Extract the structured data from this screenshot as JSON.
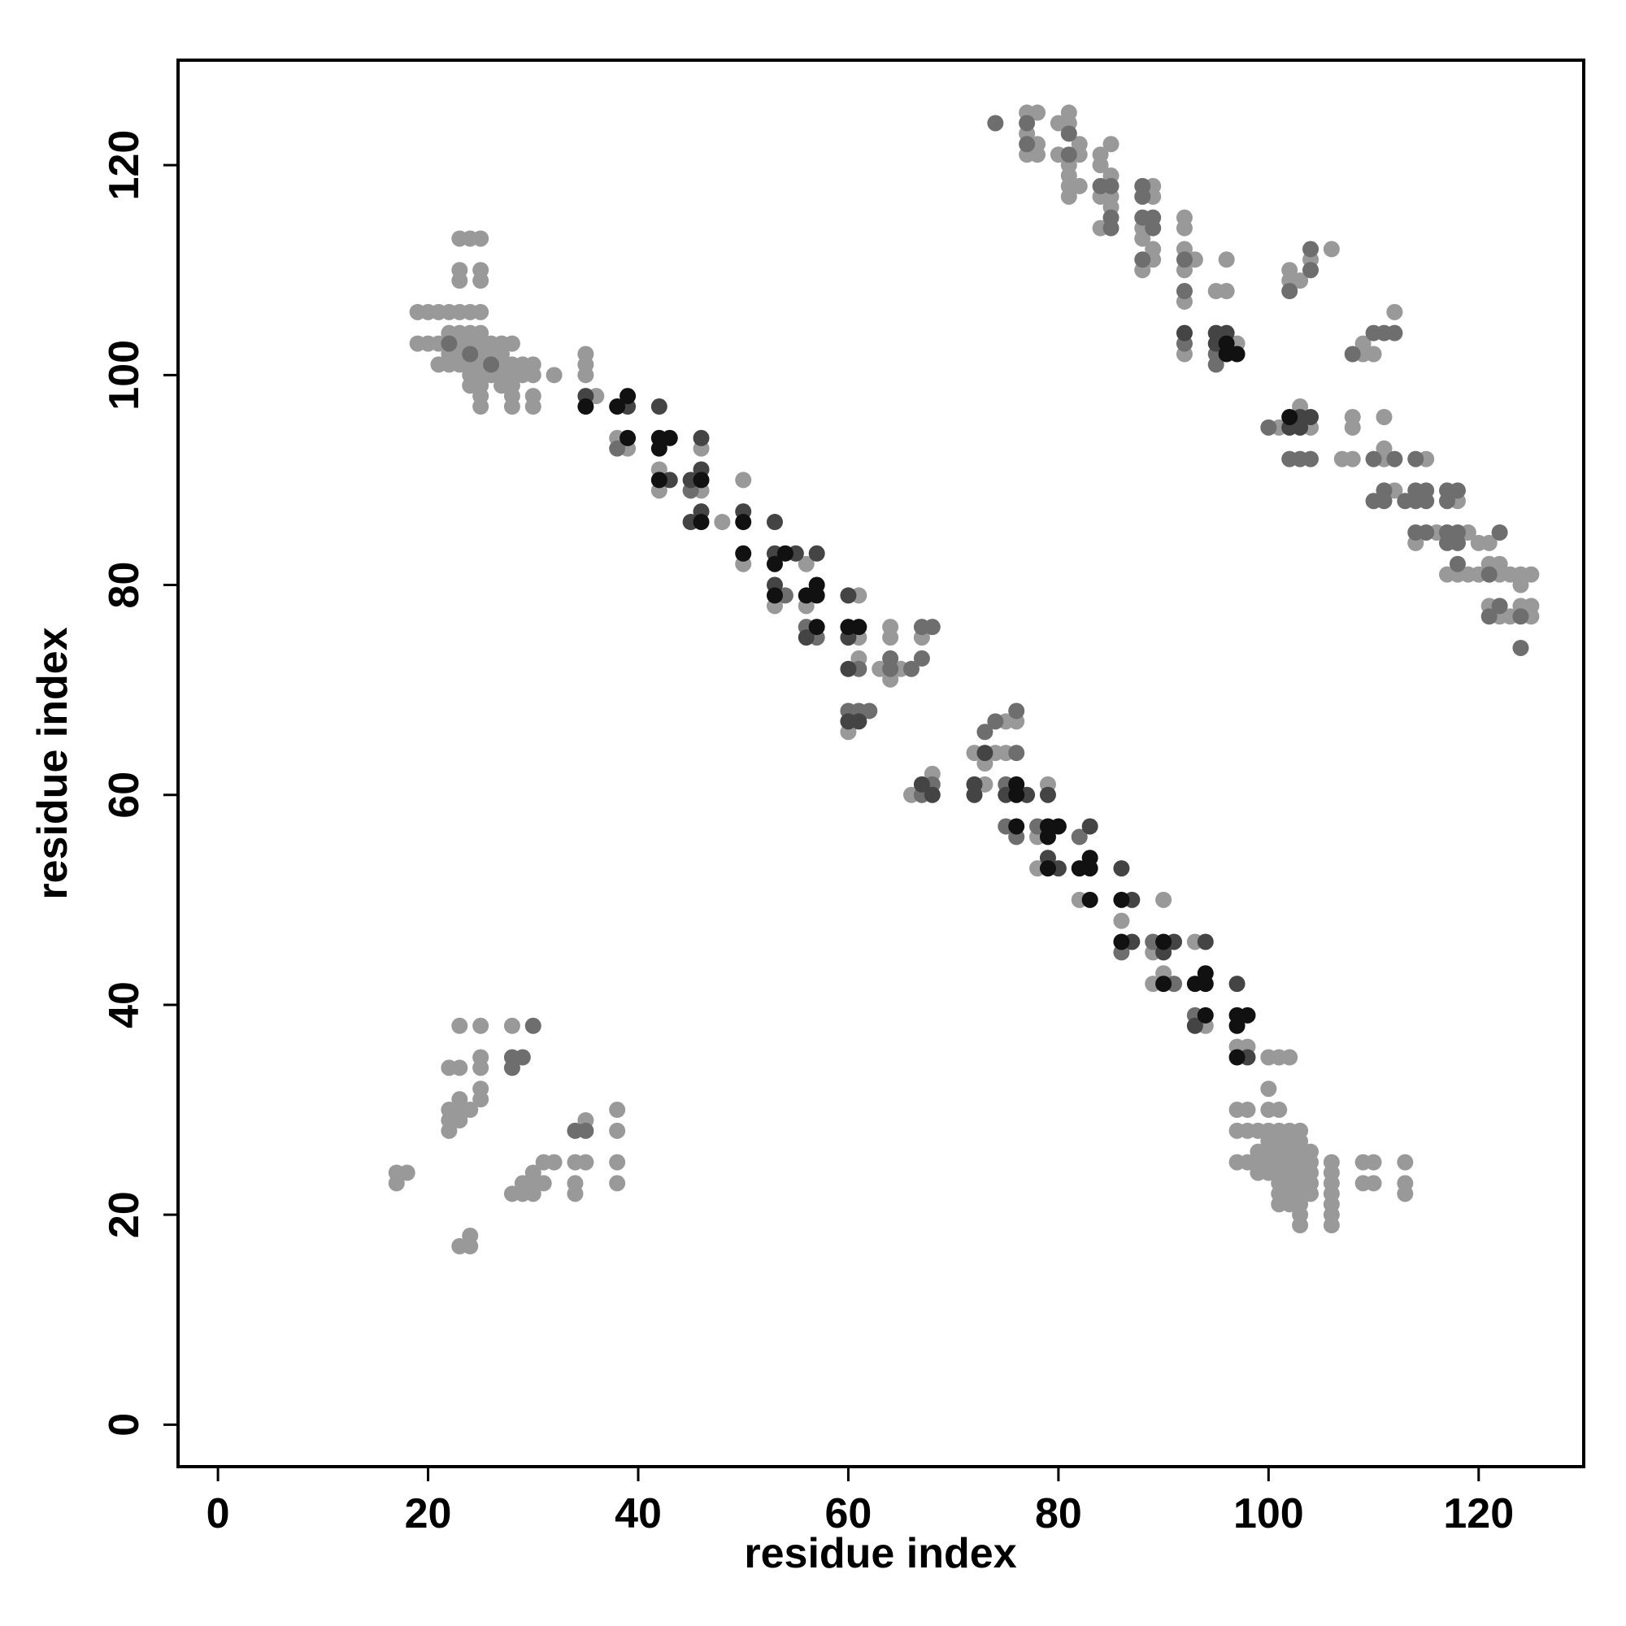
{
  "chart_data": {
    "type": "scatter",
    "xlabel": "residue index",
    "ylabel": "residue index",
    "xlim": [
      -3.8,
      130
    ],
    "ylim": [
      -4,
      130
    ],
    "xticks": [
      0,
      20,
      40,
      60,
      80,
      100,
      120
    ],
    "yticks": [
      0,
      20,
      40,
      60,
      80,
      100,
      120
    ],
    "series": [
      {
        "color": "#999999",
        "x": [
          23,
          24,
          25,
          23,
          23,
          25,
          25,
          19,
          20,
          21,
          22,
          23,
          24,
          25,
          19,
          20,
          21,
          22,
          23,
          24,
          25,
          23,
          24,
          25,
          26,
          27,
          28,
          22,
          23,
          25,
          26,
          27,
          21,
          22,
          23,
          24,
          25,
          27,
          28,
          29,
          30,
          24,
          25,
          26,
          27,
          28,
          29,
          30,
          32,
          24,
          25,
          27,
          28,
          25,
          28,
          30,
          25,
          28,
          30,
          35,
          35,
          35,
          36,
          38,
          39,
          42,
          42,
          46,
          46,
          48,
          50,
          50,
          53,
          56,
          56,
          61,
          61,
          61,
          64,
          64,
          63,
          65,
          64,
          67,
          60,
          66,
          68,
          72,
          74,
          73,
          73,
          75,
          76,
          75,
          79,
          78,
          78,
          82,
          86,
          89,
          90,
          90,
          89,
          93,
          94,
          97,
          98,
          100,
          101,
          102,
          100,
          97,
          98,
          100,
          101,
          97,
          98,
          99,
          100,
          101,
          102,
          103,
          100,
          101,
          102,
          103,
          99,
          100,
          101,
          102,
          103,
          104,
          97,
          98,
          99,
          100,
          101,
          102,
          103,
          104,
          106,
          99,
          100,
          101,
          102,
          103,
          104,
          106,
          101,
          102,
          103,
          104,
          106,
          101,
          102,
          103,
          104,
          106,
          101,
          102,
          103,
          106,
          103,
          106,
          103,
          106,
          109,
          110,
          113,
          109,
          110,
          113,
          113,
          17,
          18,
          17,
          23,
          25,
          28,
          22,
          23,
          25,
          25,
          23,
          25,
          25,
          22,
          23,
          24,
          22,
          23,
          22,
          38,
          35,
          38,
          31,
          32,
          34,
          35,
          38,
          30,
          29,
          30,
          31,
          34,
          38,
          28,
          29,
          30,
          34,
          23,
          24,
          24,
          77,
          78,
          81,
          80,
          81,
          77,
          78,
          82,
          85,
          77,
          78,
          80,
          82,
          81,
          84,
          84,
          81,
          85,
          81,
          82,
          89,
          81,
          84,
          85,
          85,
          89,
          84,
          88,
          92,
          92,
          88,
          89,
          89,
          92,
          93,
          88,
          92,
          96,
          95,
          96,
          92,
          97,
          92,
          102,
          102,
          103,
          104,
          106,
          103,
          104,
          101,
          108,
          107,
          108,
          108,
          111,
          111,
          111,
          112,
          109,
          109,
          110,
          112,
          115,
          114,
          116,
          118,
          119,
          117,
          118,
          119,
          120,
          120,
          121,
          121,
          122,
          122,
          123,
          124,
          125,
          124,
          121,
          122,
          123,
          124,
          125,
          125
        ],
        "y": [
          113,
          113,
          113,
          110,
          109,
          110,
          109,
          106,
          106,
          106,
          106,
          106,
          106,
          106,
          103,
          103,
          103,
          104,
          104,
          104,
          104,
          103,
          103,
          103,
          103,
          103,
          103,
          102,
          102,
          102,
          102,
          102,
          101,
          101,
          101,
          101,
          101,
          101,
          101,
          101,
          101,
          100,
          100,
          100,
          100,
          100,
          100,
          100,
          100,
          99,
          99,
          99,
          99,
          98,
          98,
          98,
          97,
          97,
          97,
          102,
          101,
          100,
          98,
          94,
          93,
          91,
          89,
          93,
          89,
          86,
          90,
          82,
          78,
          82,
          78,
          79,
          75,
          73,
          76,
          75,
          72,
          72,
          71,
          75,
          66,
          60,
          62,
          64,
          64,
          63,
          61,
          67,
          67,
          64,
          61,
          56,
          53,
          50,
          48,
          45,
          50,
          43,
          42,
          46,
          38,
          36,
          36,
          35,
          35,
          35,
          32,
          30,
          30,
          30,
          30,
          28,
          28,
          28,
          28,
          28,
          28,
          28,
          27,
          27,
          27,
          27,
          26,
          26,
          26,
          26,
          26,
          26,
          25,
          25,
          25,
          25,
          25,
          25,
          25,
          25,
          25,
          24,
          24,
          24,
          24,
          24,
          24,
          24,
          23,
          23,
          23,
          23,
          23,
          22,
          22,
          22,
          22,
          22,
          21,
          21,
          21,
          21,
          20,
          20,
          19,
          19,
          25,
          25,
          25,
          23,
          23,
          23,
          22,
          24,
          24,
          23,
          38,
          38,
          38,
          34,
          34,
          35,
          34,
          31,
          32,
          31,
          30,
          30,
          30,
          29,
          29,
          28,
          30,
          29,
          28,
          25,
          25,
          25,
          25,
          25,
          24,
          23,
          23,
          23,
          23,
          23,
          22,
          22,
          22,
          22,
          17,
          17,
          18,
          125,
          125,
          125,
          124,
          124,
          123,
          122,
          122,
          122,
          121,
          121,
          121,
          121,
          120,
          121,
          120,
          119,
          119,
          118,
          118,
          118,
          117,
          117,
          117,
          116,
          117,
          114,
          114,
          115,
          114,
          113,
          112,
          111,
          112,
          111,
          110,
          110,
          111,
          108,
          108,
          107,
          103,
          102,
          110,
          109,
          109,
          111,
          112,
          97,
          95,
          95,
          92,
          92,
          96,
          95,
          92,
          96,
          93,
          89,
          103,
          102,
          102,
          106,
          92,
          84,
          85,
          88,
          85,
          81,
          81,
          81,
          81,
          84,
          84,
          82,
          82,
          81,
          81,
          81,
          81,
          80,
          78,
          77,
          77,
          78,
          78,
          77
        ]
      },
      {
        "color": "#6e6e6e",
        "x": [
          22,
          24,
          26,
          38,
          45,
          54,
          56,
          57,
          61,
          64,
          64,
          66,
          67,
          68,
          67,
          60,
          61,
          62,
          68,
          67,
          73,
          74,
          76,
          76,
          75,
          75,
          76,
          78,
          82,
          86,
          89,
          91,
          93,
          30,
          28,
          29,
          28,
          34,
          35,
          74,
          77,
          81,
          77,
          81,
          84,
          85,
          88,
          88,
          85,
          85,
          88,
          89,
          89,
          88,
          92,
          92,
          92,
          95,
          95,
          102,
          104,
          104,
          100,
          102,
          103,
          104,
          110,
          112,
          110,
          111,
          111,
          108,
          110,
          111,
          112,
          114,
          113,
          114,
          115,
          114,
          115,
          114,
          115,
          117,
          118,
          117,
          117,
          118,
          117,
          118,
          118,
          122,
          121,
          122,
          121,
          124,
          124
        ],
        "y": [
          103,
          102,
          101,
          93,
          89,
          79,
          76,
          75,
          72,
          73,
          72,
          72,
          76,
          76,
          73,
          68,
          68,
          68,
          61,
          60,
          66,
          67,
          68,
          64,
          61,
          57,
          56,
          57,
          56,
          45,
          46,
          42,
          39,
          38,
          35,
          35,
          34,
          28,
          28,
          124,
          124,
          123,
          122,
          121,
          118,
          118,
          118,
          117,
          115,
          114,
          115,
          115,
          114,
          111,
          111,
          108,
          103,
          102,
          101,
          108,
          112,
          110,
          95,
          92,
          92,
          92,
          92,
          92,
          88,
          89,
          88,
          102,
          104,
          104,
          104,
          92,
          88,
          89,
          89,
          88,
          88,
          85,
          85,
          89,
          89,
          88,
          85,
          85,
          84,
          84,
          82,
          85,
          81,
          78,
          77,
          77,
          74
        ]
      },
      {
        "color": "#444444",
        "x": [
          35,
          39,
          42,
          43,
          45,
          46,
          46,
          46,
          45,
          50,
          53,
          53,
          55,
          53,
          57,
          56,
          60,
          60,
          60,
          60,
          61,
          67,
          68,
          73,
          72,
          72,
          75,
          77,
          79,
          79,
          80,
          83,
          86,
          87,
          87,
          90,
          91,
          94,
          93,
          97,
          98,
          92,
          95,
          96,
          95,
          103,
          104,
          102,
          103
        ],
        "y": [
          98,
          97,
          97,
          90,
          90,
          94,
          91,
          87,
          86,
          87,
          86,
          83,
          83,
          80,
          83,
          75,
          79,
          75,
          72,
          67,
          67,
          61,
          60,
          64,
          61,
          60,
          60,
          60,
          60,
          54,
          53,
          57,
          53,
          50,
          46,
          45,
          46,
          46,
          38,
          42,
          35,
          104,
          104,
          104,
          103,
          96,
          96,
          95,
          95
        ]
      },
      {
        "color": "#111111",
        "x": [
          35,
          38,
          39,
          39,
          42,
          43,
          42,
          42,
          46,
          46,
          50,
          50,
          54,
          53,
          53,
          57,
          56,
          57,
          57,
          60,
          61,
          76,
          76,
          76,
          79,
          80,
          79,
          79,
          82,
          83,
          83,
          83,
          86,
          86,
          90,
          90,
          93,
          94,
          94,
          94,
          97,
          98,
          97,
          97,
          96,
          96,
          97,
          102
        ],
        "y": [
          97,
          97,
          98,
          94,
          94,
          94,
          93,
          90,
          90,
          86,
          86,
          83,
          83,
          82,
          79,
          80,
          79,
          79,
          76,
          76,
          76,
          61,
          60,
          57,
          57,
          57,
          56,
          53,
          53,
          54,
          53,
          50,
          50,
          46,
          46,
          42,
          42,
          43,
          42,
          39,
          39,
          39,
          38,
          35,
          103,
          102,
          102,
          96
        ]
      }
    ]
  }
}
